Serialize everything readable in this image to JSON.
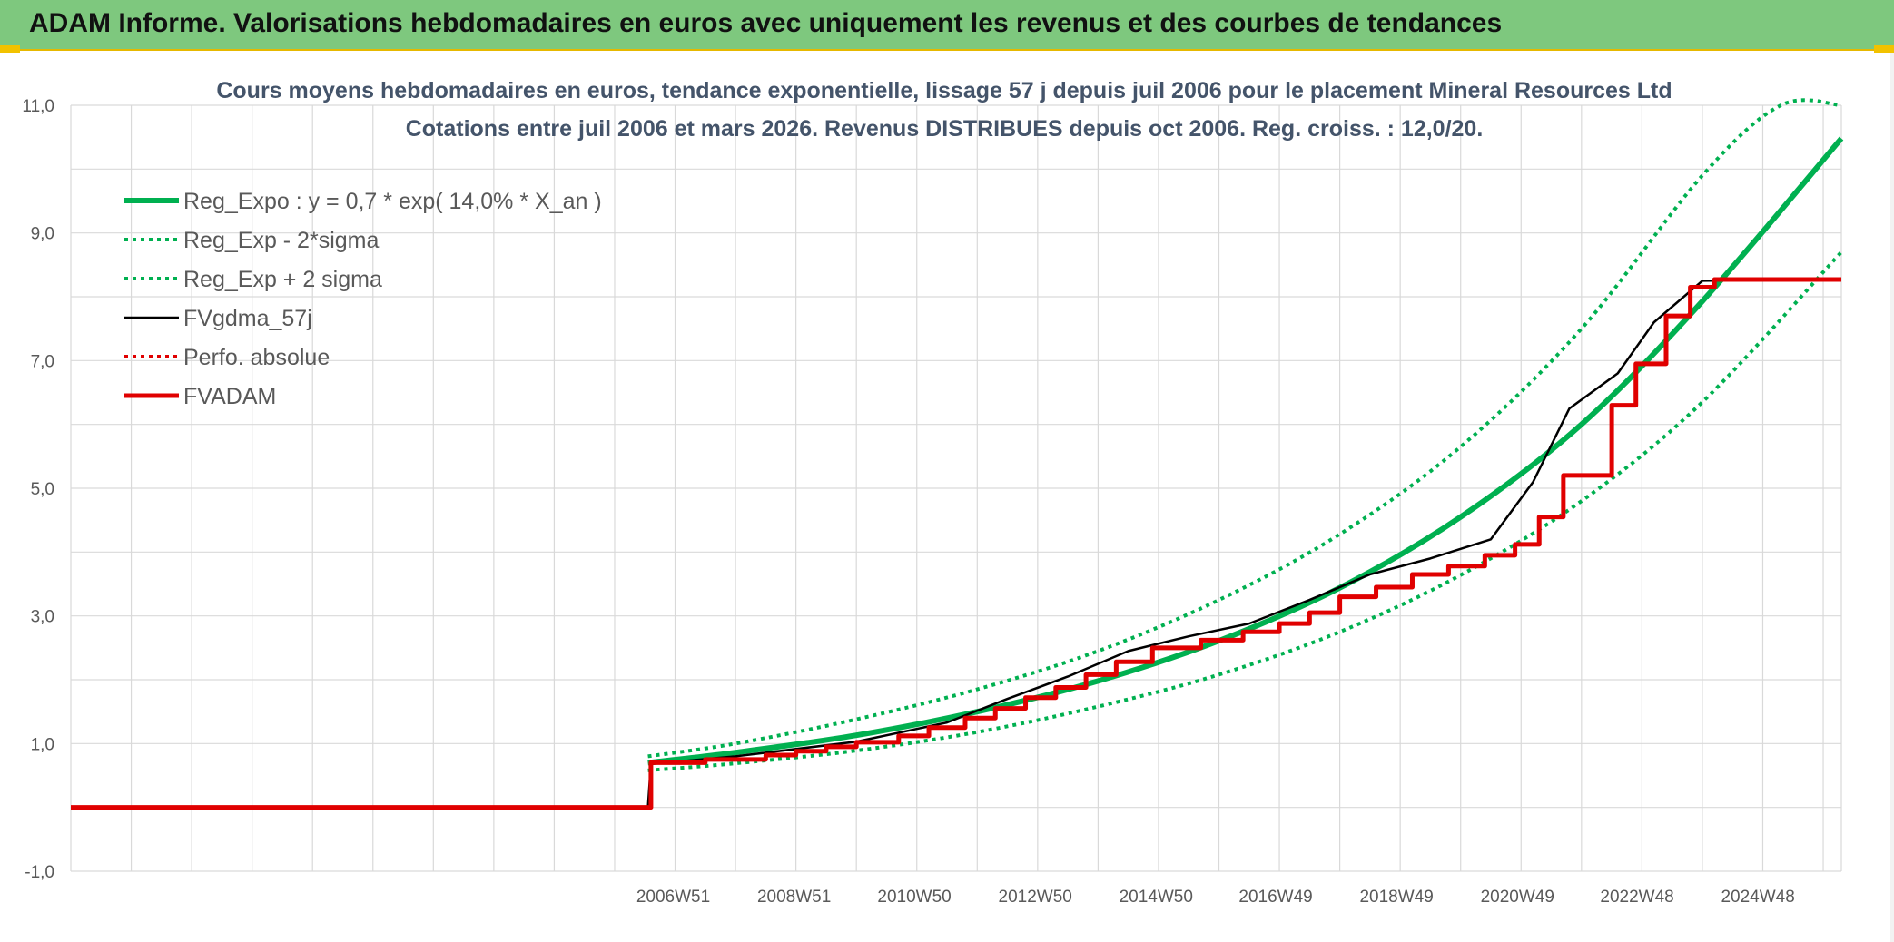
{
  "banner": {
    "title": "ADAM Informe. Valorisations hebdomadaires en euros avec uniquement les revenus et des courbes de tendances",
    "accent_color": "#7ec87e"
  },
  "chart_data": {
    "type": "line",
    "title_line1": "Cours moyens hebdomadaires en euros, tendance exponentielle, lissage 57 j depuis juil 2006 pour le placement Mineral Resources Ltd",
    "title_line2": "Cotations entre juil 2006 et mars 2026. Revenus DISTRIBUES depuis oct 2006. Reg. croiss. : 12,0/20.",
    "ylim": [
      -1,
      11
    ],
    "y_ticks": [
      {
        "value": -1,
        "label": "-1,0"
      },
      {
        "value": 1,
        "label": "1,0"
      },
      {
        "value": 3,
        "label": "3,0"
      },
      {
        "value": 5,
        "label": "5,0"
      },
      {
        "value": 7,
        "label": "7,0"
      },
      {
        "value": 9,
        "label": "9,0"
      },
      {
        "value": 11,
        "label": "11,0"
      }
    ],
    "xlim": [
      1997.0,
      2026.3
    ],
    "x_ticks": [
      {
        "value": 2006.97,
        "label": "2006W51"
      },
      {
        "value": 2008.97,
        "label": "2008W51"
      },
      {
        "value": 2010.96,
        "label": "2010W50"
      },
      {
        "value": 2012.96,
        "label": "2012W50"
      },
      {
        "value": 2014.96,
        "label": "2014W50"
      },
      {
        "value": 2016.94,
        "label": "2016W49"
      },
      {
        "value": 2018.94,
        "label": "2018W49"
      },
      {
        "value": 2020.94,
        "label": "2020W49"
      },
      {
        "value": 2022.92,
        "label": "2022W48"
      },
      {
        "value": 2024.92,
        "label": "2024W48"
      }
    ],
    "grid": true,
    "legend_position": "top-left",
    "series": [
      {
        "name": "Reg_Expo : y = 0,7 * exp( 14,0% *  X_an )",
        "style": "solid-thick",
        "color": "#00b050",
        "x": [
          2006.55,
          2008,
          2010,
          2012,
          2014,
          2016,
          2018,
          2020,
          2022,
          2024,
          2026.3
        ],
        "y": [
          0.7,
          0.86,
          1.13,
          1.5,
          1.98,
          2.61,
          3.44,
          4.55,
          6.0,
          7.93,
          10.48
        ]
      },
      {
        "name": "Reg_Exp - 2*sigma",
        "style": "dotted",
        "color": "#00b050",
        "x": [
          2006.55,
          2008,
          2010,
          2012,
          2014,
          2016,
          2018,
          2020,
          2022,
          2024,
          2026.3
        ],
        "y": [
          0.58,
          0.69,
          0.89,
          1.18,
          1.58,
          2.08,
          2.75,
          3.64,
          4.8,
          6.35,
          8.7
        ]
      },
      {
        "name": "Reg_Exp + 2 sigma",
        "style": "dotted",
        "color": "#00b050",
        "x": [
          2006.55,
          2008,
          2010,
          2012,
          2014,
          2016,
          2018,
          2020,
          2022,
          2024,
          2025.3,
          2026.3
        ],
        "y": [
          0.8,
          1.0,
          1.38,
          1.85,
          2.45,
          3.25,
          4.28,
          5.65,
          7.5,
          9.9,
          11.0,
          11.0
        ]
      },
      {
        "name": "FVgdma_57j",
        "style": "solid",
        "color": "#000000",
        "x": [
          1997.0,
          2006.55,
          2006.6,
          2008,
          2010,
          2011.5,
          2012.5,
          2013.5,
          2014.5,
          2015.5,
          2016.5,
          2017.5,
          2018.5,
          2019.5,
          2020.5,
          2021.2,
          2021.8,
          2022.6,
          2023.2,
          2024.0,
          2026.3
        ],
        "y": [
          0,
          0,
          0.68,
          0.8,
          1.03,
          1.33,
          1.7,
          2.05,
          2.45,
          2.68,
          2.88,
          3.25,
          3.65,
          3.9,
          4.2,
          5.1,
          6.25,
          6.8,
          7.6,
          8.25,
          8.28
        ]
      },
      {
        "name": "Perfo. absolue",
        "style": "dotted",
        "color": "#e00000",
        "x": [],
        "y": []
      },
      {
        "name": "FVADAM",
        "style": "step-thick",
        "color": "#e00000",
        "x": [
          1997.0,
          2006.55,
          2006.6,
          2007.5,
          2008.5,
          2009.0,
          2009.5,
          2010.0,
          2010.7,
          2011.2,
          2011.8,
          2012.3,
          2012.8,
          2013.3,
          2013.8,
          2014.3,
          2014.9,
          2015.7,
          2016.4,
          2017.0,
          2017.5,
          2018.0,
          2018.6,
          2019.2,
          2019.8,
          2020.4,
          2020.9,
          2021.3,
          2021.7,
          2022.5,
          2022.9,
          2023.4,
          2023.8,
          2024.2,
          2026.3
        ],
        "y": [
          0,
          0,
          0.7,
          0.75,
          0.82,
          0.88,
          0.95,
          1.02,
          1.12,
          1.25,
          1.4,
          1.55,
          1.72,
          1.88,
          2.08,
          2.28,
          2.5,
          2.62,
          2.75,
          2.88,
          3.05,
          3.3,
          3.45,
          3.65,
          3.78,
          3.95,
          4.12,
          4.55,
          5.2,
          6.3,
          6.95,
          7.7,
          8.15,
          8.27,
          8.27
        ]
      }
    ]
  }
}
